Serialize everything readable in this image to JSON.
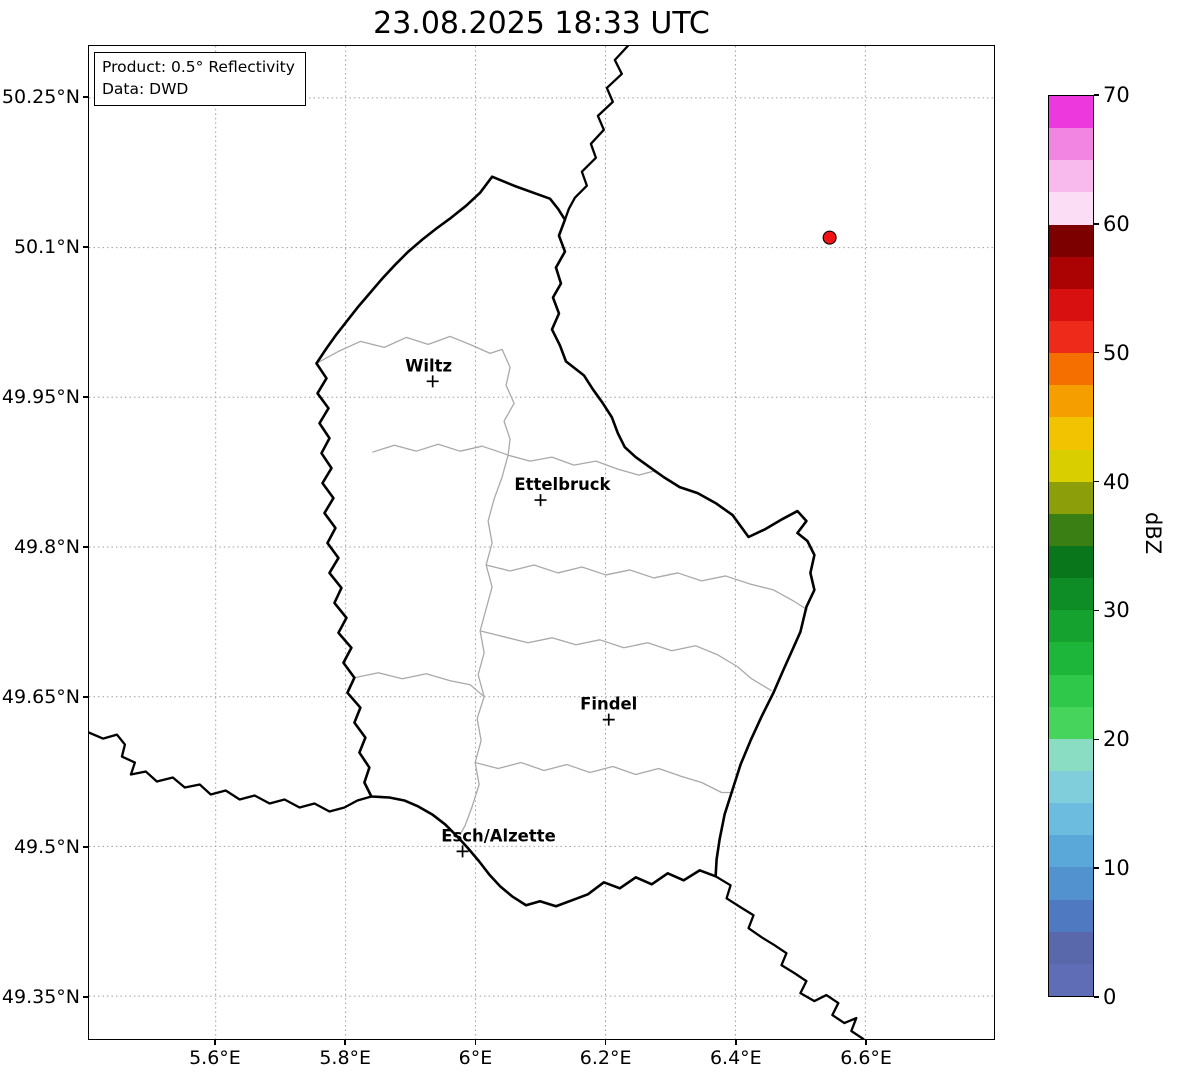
{
  "title": "23.08.2025 18:33 UTC",
  "info_box": {
    "line1": "Product: 0.5° Reflectivity",
    "line2": "Data: DWD"
  },
  "map": {
    "bounds": {
      "lon_min": 5.405,
      "lon_max": 6.798,
      "lat_min": 49.307,
      "lat_max": 50.302
    },
    "lat_ticks": [
      {
        "value": 50.25,
        "label": "50.25°N"
      },
      {
        "value": 50.1,
        "label": "50.1°N"
      },
      {
        "value": 49.95,
        "label": "49.95°N"
      },
      {
        "value": 49.8,
        "label": "49.8°N"
      },
      {
        "value": 49.65,
        "label": "49.65°N"
      },
      {
        "value": 49.5,
        "label": "49.5°N"
      },
      {
        "value": 49.35,
        "label": "49.35°N"
      }
    ],
    "lon_ticks": [
      {
        "value": 5.6,
        "label": "5.6°E"
      },
      {
        "value": 5.8,
        "label": "5.8°E"
      },
      {
        "value": 6.0,
        "label": "6°E"
      },
      {
        "value": 6.2,
        "label": "6.2°E"
      },
      {
        "value": 6.4,
        "label": "6.4°E"
      },
      {
        "value": 6.6,
        "label": "6.6°E"
      }
    ],
    "cities": [
      {
        "name": "Wiltz",
        "lon": 5.934,
        "lat": 49.966,
        "label_dx": -4
      },
      {
        "name": "Ettelbruck",
        "lon": 6.1,
        "lat": 49.847,
        "label_dx": 22
      },
      {
        "name": "Findel",
        "lon": 6.205,
        "lat": 49.627,
        "label_dx": 0
      },
      {
        "name": "Esch/Alzette",
        "lon": 5.98,
        "lat": 49.495,
        "label_dx": 36
      }
    ],
    "radar_echo": {
      "lon": 6.545,
      "lat": 50.11,
      "color": "#f01414"
    }
  },
  "colorbar": {
    "label": "dBZ",
    "min": 0,
    "max": 70,
    "tick_values": [
      0,
      10,
      20,
      30,
      40,
      50,
      60,
      70
    ],
    "tick_labels": [
      "0",
      "10",
      "20",
      "30",
      "40",
      "50",
      "60",
      "70"
    ],
    "colors_bottom_to_top": [
      "#5f6db6",
      "#5868aa",
      "#4f7ac2",
      "#5192cf",
      "#5aa8da",
      "#6cbcdf",
      "#80cedb",
      "#8adcc3",
      "#46d45c",
      "#30c84a",
      "#1eb63a",
      "#15a22f",
      "#0e8c25",
      "#0a761c",
      "#3a7f14",
      "#8c9e0a",
      "#d8ce00",
      "#f2c300",
      "#f49e00",
      "#f46e00",
      "#ee2a1a",
      "#d81010",
      "#ab0303",
      "#7d0000",
      "#fbdef5",
      "#f8b9ec",
      "#f284e2",
      "#ec38dd"
    ]
  }
}
